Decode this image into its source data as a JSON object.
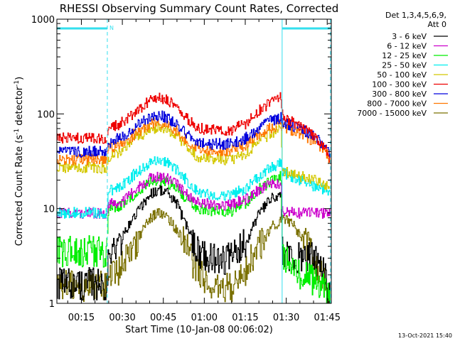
{
  "chart_data": {
    "type": "line",
    "title": "RHESSI Observing Summary Count Rates, Corrected",
    "xlabel": "Start Time (10-Jan-08 00:06:02)",
    "ylabel_main": "Corrected Count Rate (s",
    "ylabel_sup1": "-1",
    "ylabel_mid": " detector",
    "ylabel_sup2": "-1",
    "ylabel_end": ")",
    "yscale": "log",
    "ylim": [
      1,
      1000
    ],
    "xlim_minutes": [
      6.03,
      106.5
    ],
    "yticks": [
      {
        "value": 1,
        "label": "1"
      },
      {
        "value": 10,
        "label": "10"
      },
      {
        "value": 100,
        "label": "100"
      },
      {
        "value": 1000,
        "label": "1000"
      }
    ],
    "xticks": [
      {
        "minute": 15,
        "label": "00:15"
      },
      {
        "minute": 30,
        "label": "00:30"
      },
      {
        "minute": 45,
        "label": "00:45"
      },
      {
        "minute": 60,
        "label": "01:00"
      },
      {
        "minute": 75,
        "label": "01:15"
      },
      {
        "minute": 90,
        "label": "01:30"
      },
      {
        "minute": 105,
        "label": "01:45"
      }
    ],
    "legend_header": [
      "Det 1,3,4,5,6,9,",
      "Att 0"
    ],
    "legend_placement": "right",
    "night_intervals": [
      {
        "start": 6.03,
        "end": 24.5
      },
      {
        "start": 88.5,
        "end": 106.2
      }
    ],
    "night_label": "N",
    "dashed_lines_minutes": [
      24.5,
      106.2
    ],
    "solid_lines_minutes": [
      88.5
    ],
    "segments": [
      {
        "start": 6.03,
        "end": 24.5
      },
      {
        "start": 24.5,
        "end": 88.5
      },
      {
        "start": 88.5,
        "end": 106.2
      }
    ],
    "series": [
      {
        "name": "3 - 6 keV",
        "color": "#000000",
        "points": [
          [
            6,
            1.6
          ],
          [
            24,
            1.6
          ],
          [
            25,
            3
          ],
          [
            30,
            5
          ],
          [
            35,
            9
          ],
          [
            40,
            14
          ],
          [
            43,
            16
          ],
          [
            46,
            15
          ],
          [
            50,
            11
          ],
          [
            54,
            6
          ],
          [
            58,
            3.5
          ],
          [
            62,
            3
          ],
          [
            70,
            3
          ],
          [
            76,
            5
          ],
          [
            80,
            9
          ],
          [
            85,
            13
          ],
          [
            88,
            14
          ],
          [
            88.6,
            3
          ],
          [
            95,
            3
          ],
          [
            100,
            3
          ],
          [
            104,
            2
          ],
          [
            106,
            1.1
          ]
        ]
      },
      {
        "name": "6 - 12 keV",
        "color": "#cc00cc",
        "points": [
          [
            6,
            9
          ],
          [
            24,
            9
          ],
          [
            25,
            11
          ],
          [
            30,
            12
          ],
          [
            35,
            16
          ],
          [
            40,
            21
          ],
          [
            43,
            22
          ],
          [
            46,
            21
          ],
          [
            50,
            18
          ],
          [
            54,
            14
          ],
          [
            58,
            12
          ],
          [
            62,
            11
          ],
          [
            70,
            11
          ],
          [
            76,
            13
          ],
          [
            80,
            16
          ],
          [
            85,
            18
          ],
          [
            88,
            18
          ],
          [
            88.6,
            9
          ],
          [
            95,
            9
          ],
          [
            100,
            9
          ],
          [
            104,
            9
          ],
          [
            106,
            9
          ]
        ]
      },
      {
        "name": "12 - 25 keV",
        "color": "#00ee00",
        "points": [
          [
            6,
            3.5
          ],
          [
            24,
            3.5
          ],
          [
            25,
            10
          ],
          [
            30,
            11
          ],
          [
            35,
            14
          ],
          [
            40,
            19
          ],
          [
            43,
            20
          ],
          [
            46,
            19
          ],
          [
            50,
            16
          ],
          [
            54,
            12
          ],
          [
            58,
            10
          ],
          [
            62,
            9.5
          ],
          [
            70,
            9.5
          ],
          [
            76,
            12
          ],
          [
            80,
            16
          ],
          [
            85,
            20
          ],
          [
            88,
            22
          ],
          [
            88.6,
            3
          ],
          [
            95,
            2
          ],
          [
            100,
            1.8
          ],
          [
            104,
            1.5
          ],
          [
            106,
            1.1
          ]
        ]
      },
      {
        "name": "25 - 50 keV",
        "color": "#00eeee",
        "points": [
          [
            6,
            9
          ],
          [
            24,
            9
          ],
          [
            25,
            15
          ],
          [
            30,
            18
          ],
          [
            35,
            24
          ],
          [
            40,
            31
          ],
          [
            43,
            33
          ],
          [
            46,
            31
          ],
          [
            50,
            26
          ],
          [
            54,
            19
          ],
          [
            58,
            15
          ],
          [
            62,
            14
          ],
          [
            70,
            14
          ],
          [
            76,
            17
          ],
          [
            80,
            22
          ],
          [
            85,
            28
          ],
          [
            88,
            30
          ],
          [
            88.6,
            24
          ],
          [
            95,
            20
          ],
          [
            100,
            17
          ],
          [
            104,
            16
          ],
          [
            106,
            15
          ]
        ]
      },
      {
        "name": "50 - 100 keV",
        "color": "#d4c800",
        "points": [
          [
            6,
            27
          ],
          [
            24,
            27
          ],
          [
            25,
            35
          ],
          [
            30,
            42
          ],
          [
            35,
            55
          ],
          [
            40,
            68
          ],
          [
            43,
            72
          ],
          [
            46,
            68
          ],
          [
            50,
            57
          ],
          [
            54,
            42
          ],
          [
            58,
            35
          ],
          [
            62,
            33
          ],
          [
            70,
            33
          ],
          [
            76,
            40
          ],
          [
            80,
            52
          ],
          [
            85,
            64
          ],
          [
            88,
            70
          ],
          [
            88.6,
            25
          ],
          [
            95,
            22
          ],
          [
            100,
            20
          ],
          [
            104,
            18
          ],
          [
            106,
            16
          ]
        ]
      },
      {
        "name": "100 - 300 keV",
        "color": "#ee0000",
        "points": [
          [
            6,
            55
          ],
          [
            24,
            55
          ],
          [
            25,
            68
          ],
          [
            30,
            82
          ],
          [
            35,
            108
          ],
          [
            40,
            140
          ],
          [
            43,
            148
          ],
          [
            46,
            140
          ],
          [
            50,
            116
          ],
          [
            54,
            86
          ],
          [
            58,
            70
          ],
          [
            62,
            68
          ],
          [
            70,
            68
          ],
          [
            76,
            82
          ],
          [
            80,
            108
          ],
          [
            85,
            138
          ],
          [
            88,
            152
          ],
          [
            88.6,
            90
          ],
          [
            95,
            75
          ],
          [
            100,
            60
          ],
          [
            104,
            45
          ],
          [
            106,
            30
          ]
        ]
      },
      {
        "name": "300 - 800 keV",
        "color": "#0000dd",
        "points": [
          [
            6,
            40
          ],
          [
            24,
            40
          ],
          [
            25,
            50
          ],
          [
            30,
            58
          ],
          [
            35,
            74
          ],
          [
            40,
            92
          ],
          [
            43,
            97
          ],
          [
            46,
            92
          ],
          [
            50,
            78
          ],
          [
            54,
            60
          ],
          [
            58,
            50
          ],
          [
            62,
            48
          ],
          [
            70,
            48
          ],
          [
            76,
            57
          ],
          [
            80,
            72
          ],
          [
            85,
            86
          ],
          [
            88,
            92
          ],
          [
            88.6,
            82
          ],
          [
            95,
            70
          ],
          [
            100,
            58
          ],
          [
            104,
            46
          ],
          [
            106,
            35
          ]
        ]
      },
      {
        "name": "800 - 7000 keV",
        "color": "#ff7700",
        "points": [
          [
            6,
            33
          ],
          [
            24,
            33
          ],
          [
            25,
            43
          ],
          [
            30,
            50
          ],
          [
            35,
            63
          ],
          [
            40,
            78
          ],
          [
            43,
            82
          ],
          [
            46,
            78
          ],
          [
            50,
            66
          ],
          [
            54,
            51
          ],
          [
            58,
            43
          ],
          [
            62,
            41
          ],
          [
            70,
            41
          ],
          [
            76,
            49
          ],
          [
            80,
            61
          ],
          [
            85,
            73
          ],
          [
            88,
            78
          ],
          [
            88.6,
            72
          ],
          [
            95,
            62
          ],
          [
            100,
            52
          ],
          [
            104,
            42
          ],
          [
            106,
            33
          ]
        ]
      },
      {
        "name": "7000 - 15000 keV",
        "color": "#7a7000",
        "points": [
          [
            6,
            1.5
          ],
          [
            24,
            1.5
          ],
          [
            25,
            1.8
          ],
          [
            30,
            2.5
          ],
          [
            35,
            4.5
          ],
          [
            40,
            8
          ],
          [
            43,
            9
          ],
          [
            46,
            8
          ],
          [
            50,
            6
          ],
          [
            54,
            3.5
          ],
          [
            58,
            2
          ],
          [
            62,
            1.5
          ],
          [
            70,
            1.5
          ],
          [
            76,
            2.5
          ],
          [
            80,
            4
          ],
          [
            85,
            6.5
          ],
          [
            88,
            7.5
          ],
          [
            88.6,
            8
          ],
          [
            92,
            7
          ],
          [
            96,
            5
          ],
          [
            100,
            3
          ],
          [
            104,
            1.6
          ],
          [
            106,
            1.1
          ]
        ]
      }
    ]
  },
  "footer_timestamp": "13-Oct-2021 15:40"
}
